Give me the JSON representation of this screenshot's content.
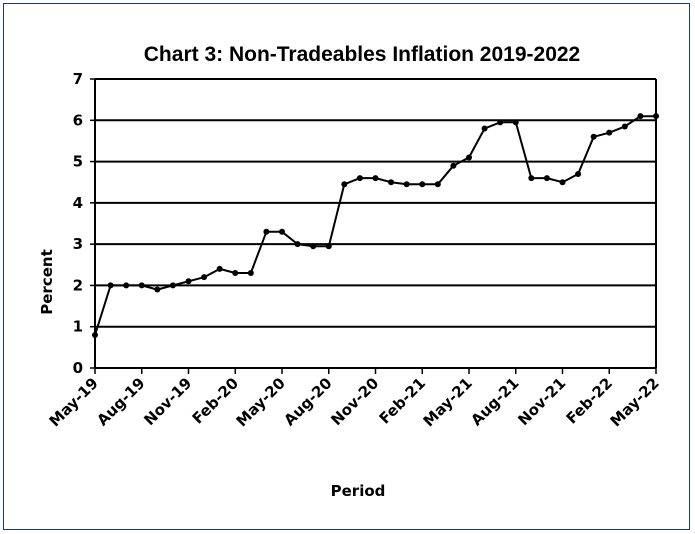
{
  "chart_data": {
    "type": "line",
    "title": "Chart 3: Non-Tradeables Inflation 2019-2022",
    "xlabel": "Period",
    "ylabel": "Percent",
    "ylim": [
      0,
      7
    ],
    "yticks": [
      "0",
      "1",
      "2",
      "3",
      "4",
      "5",
      "6",
      "7"
    ],
    "xtick_labels": [
      "May-19",
      "Aug-19",
      "Nov-19",
      "Feb-20",
      "May-20",
      "Aug-20",
      "Nov-20",
      "Feb-21",
      "May-21",
      "Aug-21",
      "Nov-21",
      "Feb-22",
      "May-22"
    ],
    "x": [
      "May-19",
      "Jun-19",
      "Jul-19",
      "Aug-19",
      "Sep-19",
      "Oct-19",
      "Nov-19",
      "Dec-19",
      "Jan-20",
      "Feb-20",
      "Mar-20",
      "Apr-20",
      "May-20",
      "Jun-20",
      "Jul-20",
      "Aug-20",
      "Sep-20",
      "Oct-20",
      "Nov-20",
      "Dec-20",
      "Jan-21",
      "Feb-21",
      "Mar-21",
      "Apr-21",
      "May-21",
      "Jun-21",
      "Jul-21",
      "Aug-21",
      "Sep-21",
      "Oct-21",
      "Nov-21",
      "Dec-21",
      "Jan-22",
      "Feb-22",
      "Mar-22",
      "Apr-22",
      "May-22"
    ],
    "series": [
      {
        "values": [
          0.8,
          2.0,
          2.0,
          2.0,
          1.9,
          2.0,
          2.1,
          2.2,
          2.4,
          2.3,
          2.3,
          3.3,
          3.3,
          3.0,
          2.95,
          2.95,
          4.45,
          4.6,
          4.6,
          4.5,
          4.45,
          4.45,
          4.45,
          4.9,
          5.1,
          5.8,
          5.95,
          5.95,
          4.6,
          4.6,
          4.5,
          4.7,
          5.6,
          5.7,
          5.85,
          6.1,
          6.1
        ],
        "color": "#000000"
      }
    ],
    "grid": "horizontal",
    "legend": "none"
  }
}
